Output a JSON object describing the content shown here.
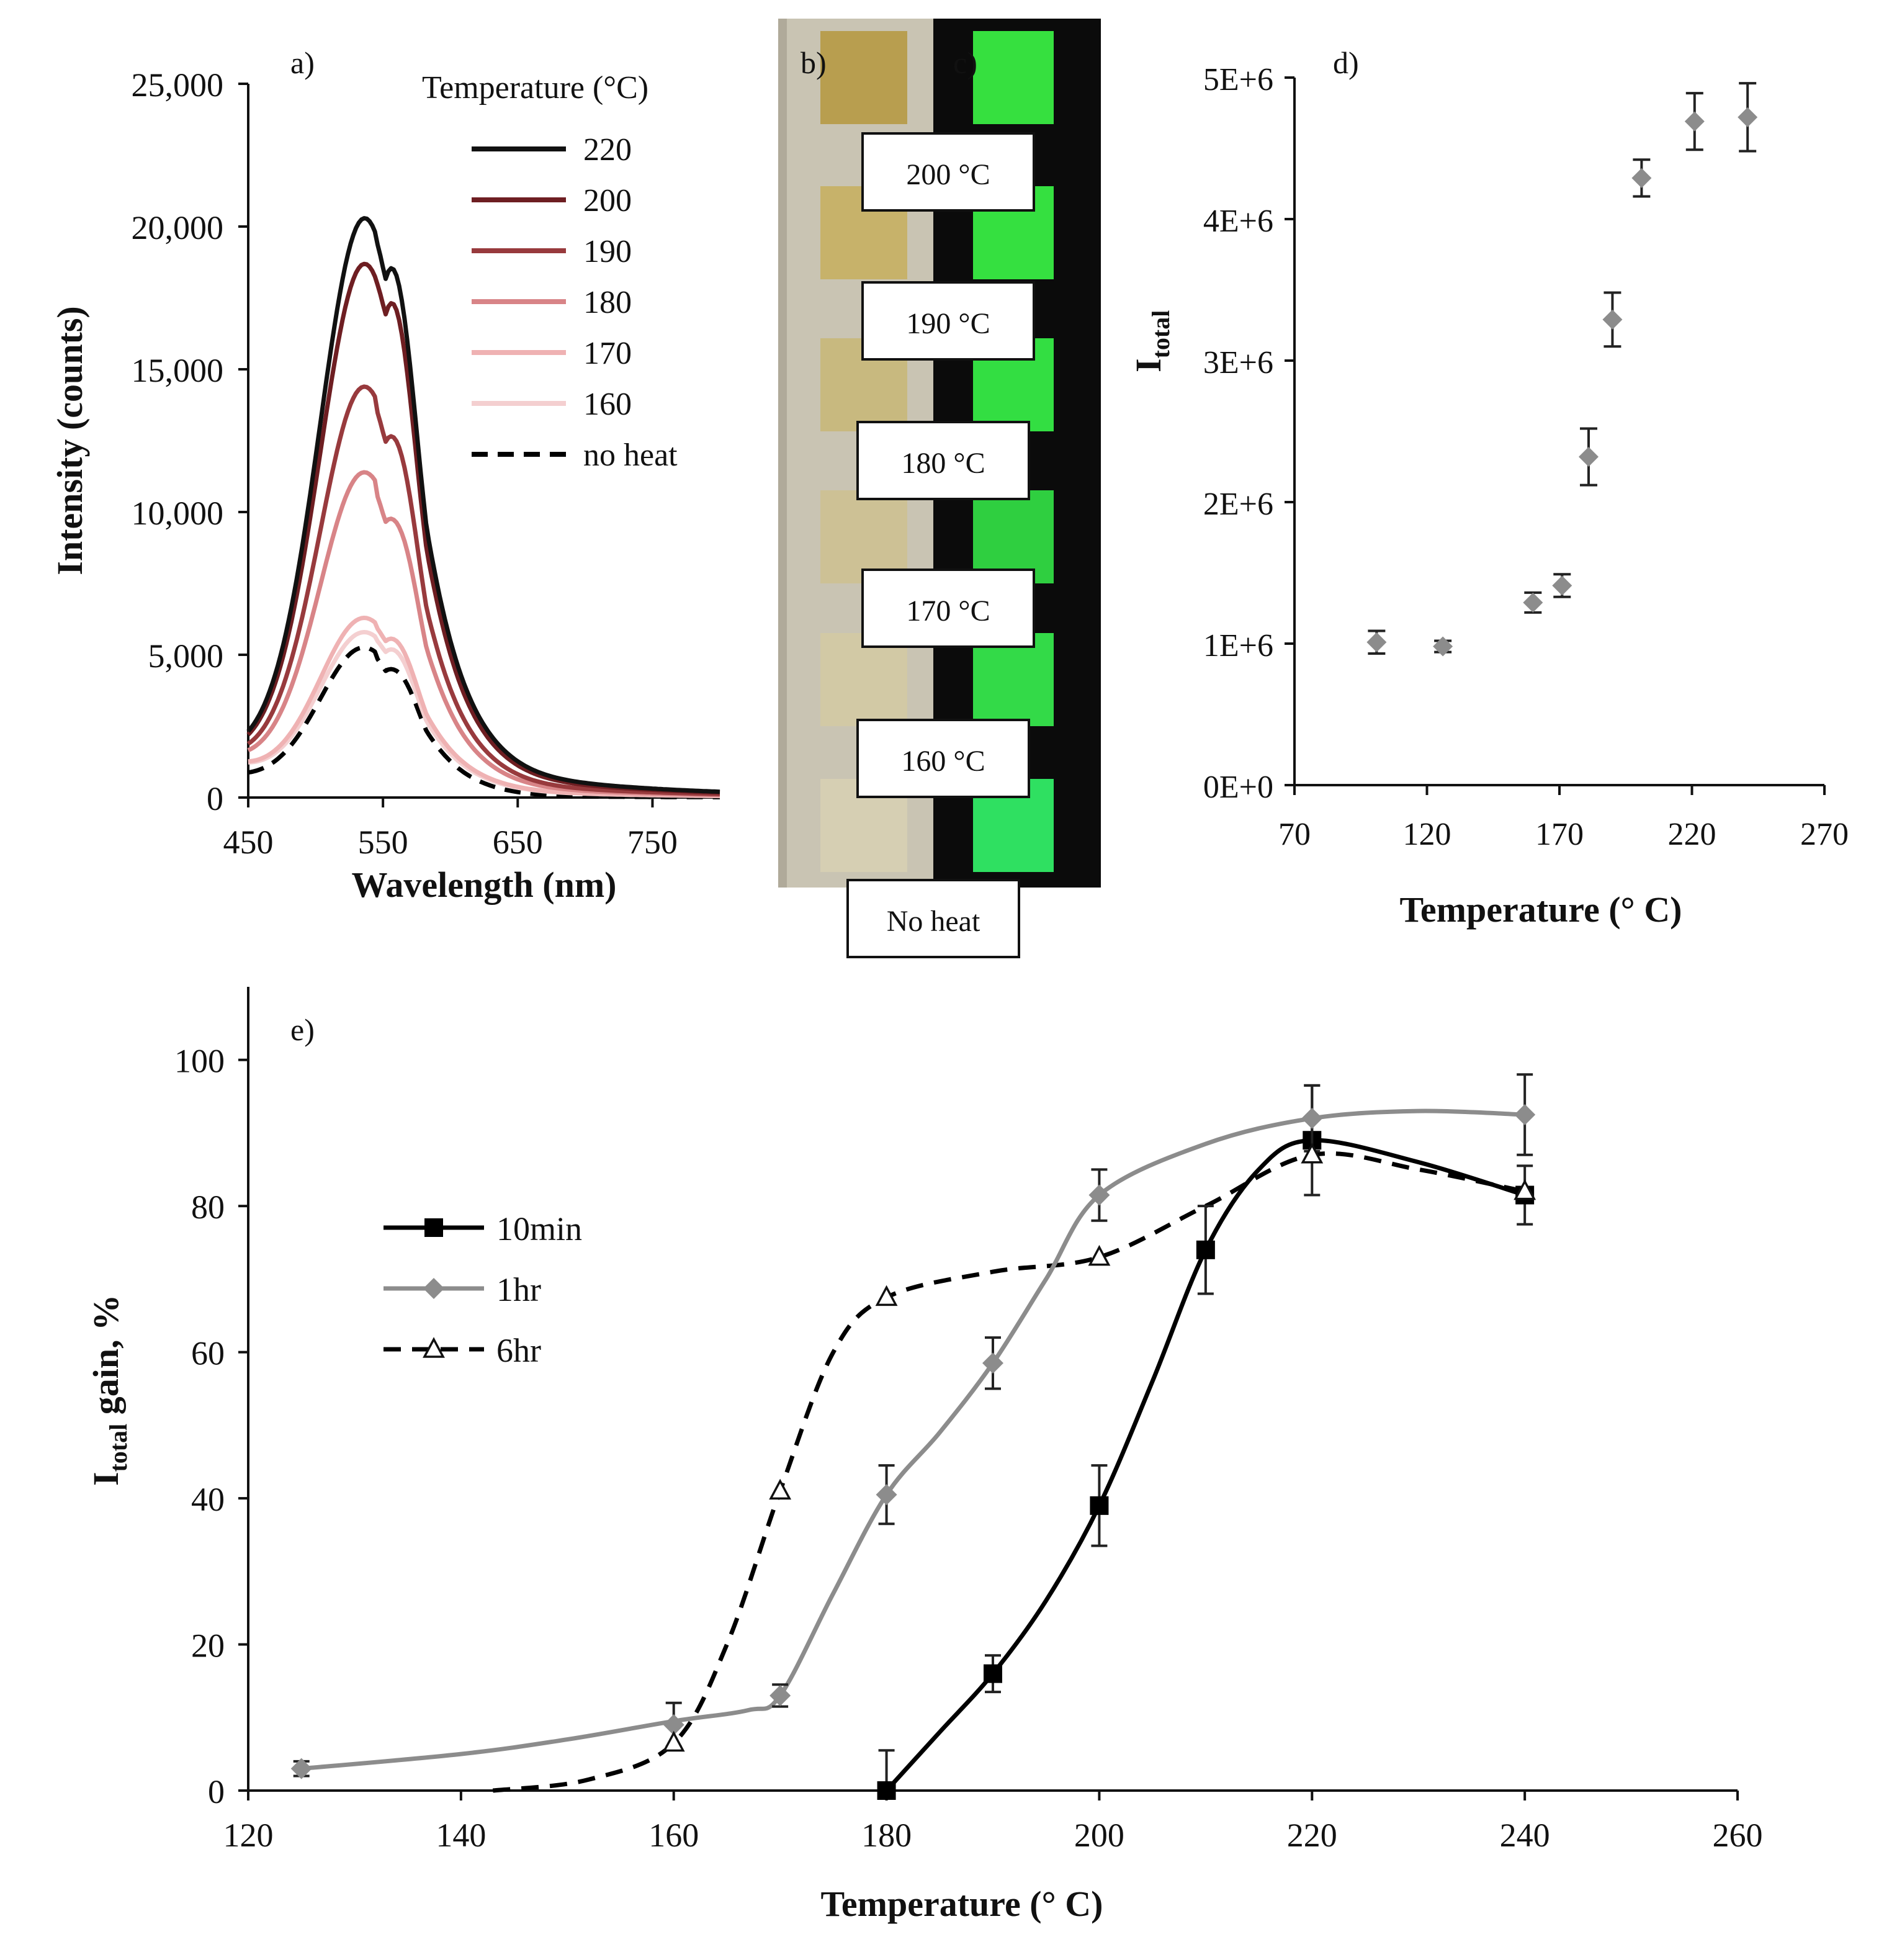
{
  "panel_labels": {
    "a": "a)",
    "b": "b)",
    "c": "c)",
    "d": "d)",
    "e": "e)"
  },
  "colors": {
    "c220": "#111111",
    "c200": "#6e1e22",
    "c190": "#983a3d",
    "c180": "#d88487",
    "c170": "#efb2b3",
    "c160": "#f4cfd0",
    "noheat": "#000000",
    "markerGray": "#8c8c8c",
    "lineGray": "#8c8c8c",
    "black": "#000000"
  },
  "photos": {
    "b_bg": "#c9c4b3",
    "c_bg": "#0b0b0b",
    "b_swatches": [
      "#b89e4f",
      "#c7b26a",
      "#c8b97f",
      "#cdc195",
      "#d2c9a5",
      "#d6cfb3"
    ],
    "c_swatches": [
      "#36e03f",
      "#35e040",
      "#33de42",
      "#2fcf40",
      "#33da48",
      "#2fe061"
    ],
    "labels": [
      "200 °C",
      "190 °C",
      "180 °C",
      "170 °C",
      "160 °C",
      "No heat"
    ]
  },
  "chart_data": [
    {
      "panel": "a",
      "type": "line",
      "xlabel": "Wavelength (nm)",
      "ylabel": "Intensity (counts)",
      "xlim": [
        450,
        800
      ],
      "ylim": [
        0,
        25000
      ],
      "xticks": [
        450,
        550,
        650,
        750
      ],
      "yticks": [
        0,
        5000,
        10000,
        15000,
        20000,
        25000
      ],
      "ytick_labels": [
        "0",
        "5,000",
        "10,000",
        "15,000",
        "20,000",
        "25,000"
      ],
      "legend_title": "Temperature (°C)",
      "legend_position": "top-right",
      "series": [
        {
          "name": "220",
          "color_key": "c220",
          "dash": "solid",
          "peak": 20200,
          "shoulder": 19800,
          "tail": 0.088
        },
        {
          "name": "200",
          "color_key": "c200",
          "dash": "solid",
          "peak": 18600,
          "shoulder": 18500,
          "tail": 0.082
        },
        {
          "name": "190",
          "color_key": "c190",
          "dash": "solid",
          "peak": 14300,
          "shoulder": 13500,
          "tail": 0.072
        },
        {
          "name": "180",
          "color_key": "c180",
          "dash": "solid",
          "peak": 11300,
          "shoulder": 10400,
          "tail": 0.07
        },
        {
          "name": "170",
          "color_key": "c170",
          "dash": "solid",
          "peak": 6200,
          "shoulder": 5900,
          "tail": 0.08
        },
        {
          "name": "160",
          "color_key": "c160",
          "dash": "solid",
          "peak": 5700,
          "shoulder": 5500,
          "tail": 0.08
        },
        {
          "name": "no heat",
          "color_key": "noheat",
          "dash": "dashed",
          "peak": 5200,
          "shoulder": 4800,
          "tail": 0.02
        }
      ]
    },
    {
      "panel": "d",
      "type": "scatter",
      "xlabel": "Temperature (° C)",
      "ylabel_main": "I",
      "ylabel_sub": "total",
      "xlim": [
        70,
        270
      ],
      "ylim": [
        0,
        5000000
      ],
      "xticks": [
        70,
        120,
        170,
        220,
        270
      ],
      "yticks": [
        0,
        1000000,
        2000000,
        3000000,
        4000000,
        5000000
      ],
      "ytick_labels": [
        "0E+0",
        "1E+6",
        "2E+6",
        "3E+6",
        "4E+6",
        "5E+6"
      ],
      "points": [
        {
          "x": 101,
          "y": 1010000,
          "err": 80000
        },
        {
          "x": 126,
          "y": 980000,
          "err": 40000
        },
        {
          "x": 160,
          "y": 1290000,
          "err": 70000
        },
        {
          "x": 171,
          "y": 1410000,
          "err": 80000
        },
        {
          "x": 181,
          "y": 2320000,
          "err": 200000
        },
        {
          "x": 190,
          "y": 3290000,
          "err": 190000
        },
        {
          "x": 201,
          "y": 4290000,
          "err": 130000
        },
        {
          "x": 221,
          "y": 4690000,
          "err": 200000
        },
        {
          "x": 241,
          "y": 4720000,
          "err": 240000
        }
      ]
    },
    {
      "panel": "e",
      "type": "line",
      "xlabel": "Temperature (° C)",
      "ylabel_main": "I",
      "ylabel_sub": "total",
      "ylabel_rest": " gain, %",
      "xlim": [
        120,
        260
      ],
      "ylim": [
        0,
        110
      ],
      "xticks": [
        120,
        140,
        160,
        180,
        200,
        220,
        240,
        260
      ],
      "yticks": [
        0,
        20,
        40,
        60,
        80,
        100
      ],
      "legend_position": "left",
      "series": [
        {
          "name": "10min",
          "color_key": "black",
          "marker": "square",
          "dash": "solid",
          "points": [
            [
              180,
              0,
              5.5
            ],
            [
              190,
              16,
              2.5
            ],
            [
              200,
              39,
              5.5
            ],
            [
              210,
              74,
              6
            ],
            [
              220,
              89,
              7.5
            ],
            [
              240,
              81.5,
              4
            ]
          ],
          "curve": [
            [
              180,
              0
            ],
            [
              185,
              8
            ],
            [
              190,
              16
            ],
            [
              195,
              26
            ],
            [
              200,
              39
            ],
            [
              205,
              56
            ],
            [
              210,
              74
            ],
            [
              215,
              85
            ],
            [
              220,
              89
            ],
            [
              230,
              86
            ],
            [
              240,
              81.5
            ]
          ]
        },
        {
          "name": "1hr",
          "color_key": "lineGray",
          "marker": "diamond",
          "dash": "solid",
          "points": [
            [
              125,
              3,
              1
            ],
            [
              160,
              9,
              3
            ],
            [
              170,
              13,
              1.5
            ],
            [
              180,
              40.5,
              4
            ],
            [
              190,
              58.5,
              3.5
            ],
            [
              200,
              81.5,
              3.5
            ],
            [
              220,
              92,
              4.5
            ],
            [
              240,
              92.5,
              5.5
            ]
          ],
          "curve": [
            [
              125,
              3
            ],
            [
              140,
              5
            ],
            [
              150,
              7
            ],
            [
              160,
              9.5
            ],
            [
              167,
              11
            ],
            [
              170,
              13
            ],
            [
              175,
              27
            ],
            [
              180,
              40.5
            ],
            [
              185,
              49
            ],
            [
              190,
              58.5
            ],
            [
              195,
              70
            ],
            [
              200,
              81.5
            ],
            [
              210,
              88.5
            ],
            [
              220,
              92
            ],
            [
              230,
              93
            ],
            [
              240,
              92.5
            ]
          ]
        },
        {
          "name": "6hr",
          "color_key": "black",
          "marker": "triangle",
          "dash": "dashed",
          "points": [
            [
              160,
              6.5,
              0
            ],
            [
              170,
              41,
              0
            ],
            [
              180,
              67.5,
              0
            ],
            [
              200,
              73,
              0
            ],
            [
              220,
              87,
              0
            ],
            [
              240,
              82,
              0
            ]
          ],
          "curve": [
            [
              143,
              0
            ],
            [
              152,
              1.5
            ],
            [
              160,
              6.5
            ],
            [
              165,
              20
            ],
            [
              170,
              41
            ],
            [
              175,
              60
            ],
            [
              180,
              67.5
            ],
            [
              190,
              71
            ],
            [
              200,
              73
            ],
            [
              210,
              80
            ],
            [
              220,
              87
            ],
            [
              230,
              85
            ],
            [
              240,
              82
            ]
          ]
        }
      ]
    }
  ]
}
